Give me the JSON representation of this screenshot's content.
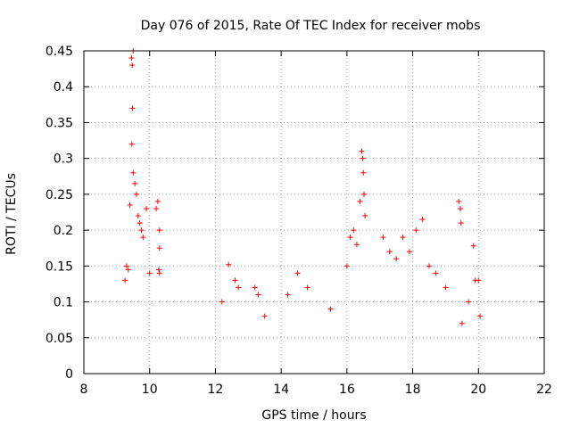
{
  "chart_data": {
    "type": "scatter",
    "title": "Day 076 of 2015, Rate Of TEC Index for receiver mobs",
    "xlabel": "GPS time / hours",
    "ylabel": "ROTI / TECUs",
    "xlim": [
      8,
      22
    ],
    "ylim": [
      0,
      0.45
    ],
    "xticks": [
      "8",
      "10",
      "12",
      "14",
      "16",
      "18",
      "20",
      "22"
    ],
    "yticks": [
      "0",
      "0.05",
      "0.1",
      "0.15",
      "0.2",
      "0.25",
      "0.3",
      "0.35",
      "0.4",
      "0.45"
    ],
    "grid": true,
    "marker": "+",
    "color": "#ff0000",
    "series": [
      {
        "name": "ROTI",
        "points": [
          [
            9.45,
            0.44
          ],
          [
            9.47,
            0.43
          ],
          [
            9.5,
            0.45
          ],
          [
            9.48,
            0.37
          ],
          [
            9.46,
            0.32
          ],
          [
            9.5,
            0.28
          ],
          [
            9.55,
            0.265
          ],
          [
            9.6,
            0.25
          ],
          [
            9.4,
            0.235
          ],
          [
            9.65,
            0.22
          ],
          [
            9.7,
            0.21
          ],
          [
            9.75,
            0.2
          ],
          [
            9.8,
            0.19
          ],
          [
            9.3,
            0.15
          ],
          [
            9.35,
            0.145
          ],
          [
            9.9,
            0.23
          ],
          [
            10.25,
            0.24
          ],
          [
            10.2,
            0.23
          ],
          [
            10.3,
            0.2
          ],
          [
            10.3,
            0.175
          ],
          [
            10.28,
            0.145
          ],
          [
            10.3,
            0.14
          ],
          [
            10.0,
            0.14
          ],
          [
            9.25,
            0.13
          ],
          [
            12.4,
            0.152
          ],
          [
            12.6,
            0.13
          ],
          [
            12.7,
            0.12
          ],
          [
            12.2,
            0.1
          ],
          [
            13.2,
            0.12
          ],
          [
            13.3,
            0.11
          ],
          [
            13.5,
            0.08
          ],
          [
            14.5,
            0.14
          ],
          [
            14.8,
            0.12
          ],
          [
            14.2,
            0.11
          ],
          [
            15.5,
            0.09
          ],
          [
            16.1,
            0.19
          ],
          [
            16.2,
            0.2
          ],
          [
            16.45,
            0.31
          ],
          [
            16.48,
            0.3
          ],
          [
            16.5,
            0.28
          ],
          [
            16.52,
            0.25
          ],
          [
            16.4,
            0.24
          ],
          [
            16.55,
            0.22
          ],
          [
            16.3,
            0.18
          ],
          [
            16.0,
            0.15
          ],
          [
            17.1,
            0.19
          ],
          [
            17.3,
            0.17
          ],
          [
            17.5,
            0.16
          ],
          [
            17.7,
            0.19
          ],
          [
            17.9,
            0.17
          ],
          [
            18.1,
            0.2
          ],
          [
            18.3,
            0.215
          ],
          [
            18.5,
            0.15
          ],
          [
            18.7,
            0.14
          ],
          [
            19.0,
            0.12
          ],
          [
            19.4,
            0.24
          ],
          [
            19.45,
            0.23
          ],
          [
            19.47,
            0.21
          ],
          [
            19.85,
            0.178
          ],
          [
            19.9,
            0.13
          ],
          [
            20.0,
            0.13
          ],
          [
            20.05,
            0.08
          ],
          [
            19.7,
            0.1
          ],
          [
            19.5,
            0.07
          ]
        ]
      }
    ]
  }
}
